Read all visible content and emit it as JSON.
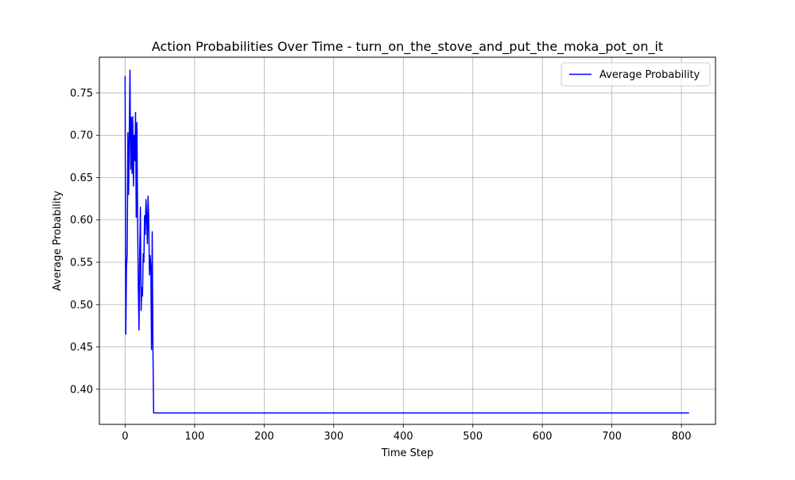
{
  "chart_data": {
    "type": "line",
    "title": "Action Probabilities Over Time - turn_on_the_stove_and_put_the_moka_pot_on_it",
    "xlabel": "Time Step",
    "ylabel": "Average Probability",
    "xlim": [
      -37,
      849
    ],
    "ylim": [
      0.3585,
      0.7922
    ],
    "xticks": [
      0,
      100,
      200,
      300,
      400,
      500,
      600,
      700,
      800
    ],
    "yticks": [
      0.4,
      0.45,
      0.5,
      0.55,
      0.6,
      0.65,
      0.7,
      0.75
    ],
    "xtick_labels": [
      "0",
      "100",
      "200",
      "300",
      "400",
      "500",
      "600",
      "700",
      "800"
    ],
    "ytick_labels": [
      "0.40",
      "0.45",
      "0.50",
      "0.55",
      "0.60",
      "0.65",
      "0.70",
      "0.75"
    ],
    "grid": true,
    "legend_position": "upper right",
    "series": [
      {
        "name": "Average Probability",
        "color": "#0000ff",
        "x": [
          0,
          1,
          2,
          3,
          4,
          5,
          6,
          7,
          8,
          9,
          10,
          11,
          12,
          13,
          14,
          15,
          16,
          17,
          18,
          19,
          20,
          21,
          22,
          23,
          24,
          25,
          26,
          27,
          28,
          29,
          30,
          31,
          32,
          33,
          34,
          35,
          36,
          37,
          38,
          39,
          40,
          41,
          42,
          43,
          44,
          45,
          46,
          47,
          48,
          100,
          200,
          300,
          400,
          500,
          600,
          700,
          811
        ],
        "y": [
          0.77,
          0.465,
          0.545,
          0.56,
          0.703,
          0.63,
          0.7,
          0.777,
          0.66,
          0.721,
          0.655,
          0.722,
          0.64,
          0.7,
          0.67,
          0.727,
          0.603,
          0.715,
          0.6,
          0.52,
          0.47,
          0.56,
          0.615,
          0.493,
          0.52,
          0.51,
          0.56,
          0.55,
          0.605,
          0.583,
          0.624,
          0.605,
          0.572,
          0.628,
          0.6,
          0.535,
          0.558,
          0.545,
          0.447,
          0.586,
          0.45,
          0.372,
          0.372,
          0.372,
          0.372,
          0.372,
          0.372,
          0.372,
          0.372,
          0.372,
          0.372,
          0.372,
          0.372,
          0.372,
          0.372,
          0.372,
          0.372
        ]
      }
    ]
  }
}
